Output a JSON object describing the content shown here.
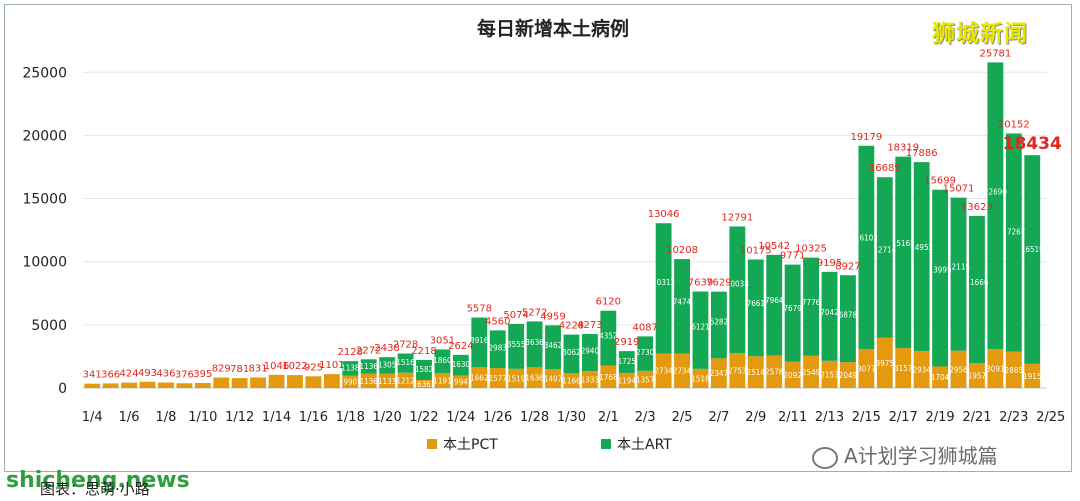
{
  "brand": "狮城新闻",
  "watermark_site": "shicheng.news",
  "watermark_account": "A计划学习狮城篇",
  "caption": "图表：思萌·小路",
  "chart_data": {
    "type": "bar",
    "stacked": true,
    "title": "每日新增本土病例",
    "xlabel": "",
    "ylabel": "",
    "ylim": [
      0,
      27000
    ],
    "yticks": [
      0,
      5000,
      10000,
      15000,
      20000,
      25000
    ],
    "grid": true,
    "legend_position": "bottom",
    "xtick_labels": [
      "1/4",
      "1/6",
      "1/8",
      "1/10",
      "1/12",
      "1/14",
      "1/16",
      "1/18",
      "1/20",
      "1/22",
      "1/24",
      "1/26",
      "1/28",
      "1/30",
      "2/1",
      "2/3",
      "2/5",
      "2/7",
      "2/9",
      "2/11",
      "2/13",
      "2/15",
      "2/17",
      "2/19",
      "2/21",
      "2/23",
      "2/25"
    ],
    "categories": [
      "1/4",
      "1/5",
      "1/6",
      "1/7",
      "1/8",
      "1/9",
      "1/10",
      "1/11",
      "1/12",
      "1/13",
      "1/14",
      "1/15",
      "1/16",
      "1/17",
      "1/18",
      "1/19",
      "1/20",
      "1/21",
      "1/22",
      "1/23",
      "1/24",
      "1/25",
      "1/26",
      "1/27",
      "1/28",
      "1/29",
      "1/30",
      "1/31",
      "2/1",
      "2/2",
      "2/3",
      "2/4",
      "2/5",
      "2/6",
      "2/7",
      "2/8",
      "2/9",
      "2/10",
      "2/11",
      "2/12",
      "2/13",
      "2/14",
      "2/15",
      "2/16",
      "2/17",
      "2/18",
      "2/19",
      "2/20",
      "2/21",
      "2/22",
      "2/23",
      "2/24"
    ],
    "series": [
      {
        "name": "本土PCT",
        "color": "#e39a0e",
        "values": [
          341,
          366,
          424,
          493,
          436,
          376,
          395,
          829,
          781,
          831,
          1046,
          1022,
          925,
          1101,
          990,
          1136,
          1133,
          1212,
          636,
          1191,
          994,
          1662,
          1577,
          1519,
          1636,
          1497,
          1166,
          1333,
          1768,
          1194,
          1357,
          2734,
          2734,
          1518,
          2347,
          2753,
          2514,
          2578,
          2092,
          2549,
          2153,
          2049,
          3077,
          3975,
          3157,
          2934,
          1704,
          2956,
          1957,
          3091,
          2885,
          1915
        ]
      },
      {
        "name": "本土ART",
        "color": "#14a855",
        "values": [
          0,
          0,
          0,
          0,
          0,
          0,
          0,
          0,
          0,
          0,
          0,
          0,
          0,
          0,
          1138,
          1136,
          1305,
          1516,
          1582,
          1860,
          1630,
          3916,
          2983,
          3555,
          3636,
          3462,
          3062,
          2940,
          4352,
          1725,
          2730,
          10312,
          7474,
          6121,
          5282,
          10038,
          7661,
          7964,
          7679,
          7776,
          7042,
          6878,
          16102,
          12714,
          15162,
          14952,
          13995,
          12115,
          11666,
          22690,
          17267,
          16519
        ]
      },
      {
        "name": "total",
        "color": "#e2261d",
        "values": [
          341,
          366,
          424,
          493,
          436,
          376,
          395,
          829,
          781,
          831,
          1046,
          1022,
          925,
          1101,
          2128,
          2272,
          2438,
          2728,
          2218,
          3051,
          2624,
          5578,
          4560,
          5074,
          5272,
          4959,
          4228,
          4273,
          6120,
          2919,
          4087,
          13046,
          10208,
          7639,
          7629,
          12791,
          10175,
          10542,
          9771,
          10325,
          9195,
          8927,
          19179,
          16689,
          18319,
          17886,
          15699,
          15071,
          13623,
          25781,
          20152,
          18434
        ]
      }
    ]
  }
}
